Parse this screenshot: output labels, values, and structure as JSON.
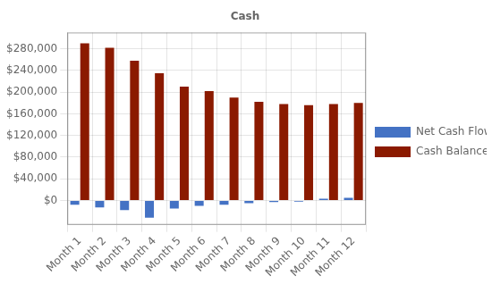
{
  "chart_data": {
    "type": "bar",
    "title": "Cash",
    "categories": [
      "Month 1",
      "Month 2",
      "Month 3",
      "Month 4",
      "Month 5",
      "Month 6",
      "Month 7",
      "Month 8",
      "Month 9",
      "Month 10",
      "Month 11",
      "Month 12"
    ],
    "series": [
      {
        "name": "Net Cash Flow",
        "color": "#4472C4",
        "values": [
          -8000,
          -13000,
          -18000,
          -32000,
          -15000,
          -10000,
          -8000,
          -5000,
          -3000,
          -2000,
          3000,
          5000
        ]
      },
      {
        "name": "Cash Balance",
        "color": "#8B1A00",
        "values": [
          290000,
          282000,
          258000,
          235000,
          210000,
          202000,
          190000,
          182000,
          178000,
          176000,
          178000,
          180000
        ]
      }
    ],
    "ylim": [
      -45000,
      310000
    ],
    "yticks": [
      {
        "value": 0,
        "label": "$0"
      },
      {
        "value": 40000,
        "label": "$40,000"
      },
      {
        "value": 80000,
        "label": "$80,000"
      },
      {
        "value": 120000,
        "label": "$120,000"
      },
      {
        "value": 160000,
        "label": "$160,000"
      },
      {
        "value": 200000,
        "label": "$200,000"
      },
      {
        "value": 240000,
        "label": "$240,000"
      },
      {
        "value": 280000,
        "label": "$280,000"
      }
    ],
    "grid": true,
    "legend": "right"
  }
}
